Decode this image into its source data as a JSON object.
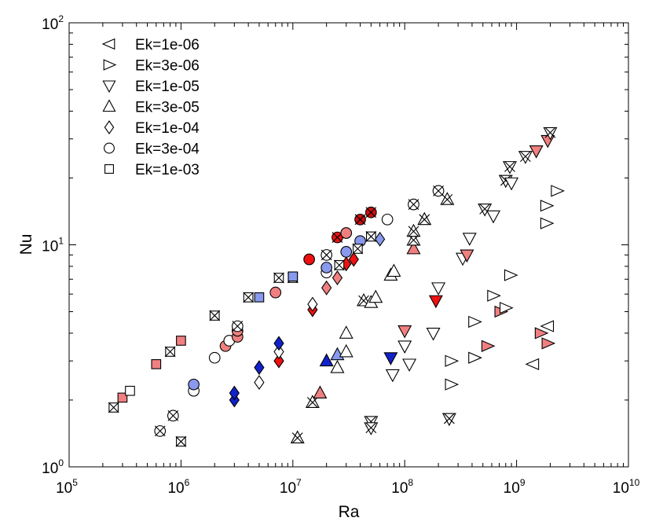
{
  "chart_data": {
    "type": "scatter",
    "title": "",
    "xlabel": "Ra",
    "ylabel": "Nu",
    "xscale": "log",
    "yscale": "log",
    "xlim": [
      100000,
      10000000000
    ],
    "ylim": [
      1,
      100
    ],
    "x_ticks": [
      {
        "base": "10",
        "exp": "5",
        "value": 100000
      },
      {
        "base": "10",
        "exp": "6",
        "value": 1000000
      },
      {
        "base": "10",
        "exp": "7",
        "value": 10000000
      },
      {
        "base": "10",
        "exp": "8",
        "value": 100000000
      },
      {
        "base": "10",
        "exp": "9",
        "value": 1000000000
      },
      {
        "base": "10",
        "exp": "10",
        "value": 10000000000
      }
    ],
    "y_ticks": [
      {
        "base": "10",
        "exp": "0",
        "value": 1
      },
      {
        "base": "10",
        "exp": "1",
        "value": 10
      },
      {
        "base": "10",
        "exp": "2",
        "value": 100
      }
    ],
    "legend_position": "top-left",
    "legend": [
      {
        "label": "Ek=1e-06",
        "marker": "triangle-left"
      },
      {
        "label": "Ek=3e-06",
        "marker": "triangle-right"
      },
      {
        "label": "Ek=1e-05",
        "marker": "triangle-down"
      },
      {
        "label": "Ek=3e-05",
        "marker": "triangle-up"
      },
      {
        "label": "Ek=1e-04",
        "marker": "diamond"
      },
      {
        "label": "Ek=3e-04",
        "marker": "circle"
      },
      {
        "label": "Ek=1e-03",
        "marker": "square"
      }
    ],
    "fill_colors": {
      "white": "#ffffff",
      "red": "#ee1111",
      "darkred": "#cc1111",
      "pink": "#f08080",
      "blue": "#1122cc",
      "lightblue": "#8899ee"
    },
    "series": [
      {
        "name": "Ek=1e-06",
        "marker": "triangle-left",
        "points": [
          {
            "x": 1400000000,
            "y": 2.9,
            "fill": "white",
            "cross": false
          },
          {
            "x": 1900000000,
            "y": 4.3,
            "fill": "white",
            "cross": false
          }
        ]
      },
      {
        "name": "Ek=3e-06",
        "marker": "triangle-right",
        "points": [
          {
            "x": 260000000,
            "y": 2.35,
            "fill": "white",
            "cross": false
          },
          {
            "x": 260000000,
            "y": 3.0,
            "fill": "white",
            "cross": false
          },
          {
            "x": 420000000,
            "y": 3.1,
            "fill": "white",
            "cross": false
          },
          {
            "x": 420000000,
            "y": 4.5,
            "fill": "white",
            "cross": false
          },
          {
            "x": 550000000,
            "y": 3.5,
            "fill": "pink",
            "cross": false
          },
          {
            "x": 620000000,
            "y": 5.9,
            "fill": "white",
            "cross": false
          },
          {
            "x": 720000000,
            "y": 5.0,
            "fill": "pink",
            "cross": false
          },
          {
            "x": 800000000,
            "y": 5.2,
            "fill": "white",
            "cross": false
          },
          {
            "x": 880000000,
            "y": 7.3,
            "fill": "white",
            "cross": false
          },
          {
            "x": 1650000000,
            "y": 4.0,
            "fill": "pink",
            "cross": false
          },
          {
            "x": 1900000000,
            "y": 3.6,
            "fill": "pink",
            "cross": false
          },
          {
            "x": 1850000000,
            "y": 12.5,
            "fill": "white",
            "cross": false
          },
          {
            "x": 1850000000,
            "y": 15.0,
            "fill": "white",
            "cross": false
          },
          {
            "x": 2300000000,
            "y": 17.5,
            "fill": "white",
            "cross": false
          }
        ]
      },
      {
        "name": "Ek=1e-05",
        "marker": "triangle-down",
        "points": [
          {
            "x": 50000000,
            "y": 1.6,
            "fill": "white",
            "cross": true
          },
          {
            "x": 50000000,
            "y": 1.5,
            "fill": "white",
            "cross": true
          },
          {
            "x": 75000000,
            "y": 3.1,
            "fill": "blue",
            "cross": false
          },
          {
            "x": 78000000,
            "y": 2.6,
            "fill": "white",
            "cross": false
          },
          {
            "x": 100000000,
            "y": 3.5,
            "fill": "white",
            "cross": false
          },
          {
            "x": 100000000,
            "y": 4.1,
            "fill": "pink",
            "cross": false
          },
          {
            "x": 110000000,
            "y": 2.9,
            "fill": "white",
            "cross": false
          },
          {
            "x": 180000000,
            "y": 4.0,
            "fill": "white",
            "cross": false
          },
          {
            "x": 190000000,
            "y": 5.6,
            "fill": "red",
            "cross": false
          },
          {
            "x": 200000000,
            "y": 6.4,
            "fill": "white",
            "cross": false
          },
          {
            "x": 250000000,
            "y": 1.65,
            "fill": "white",
            "cross": true
          },
          {
            "x": 330000000,
            "y": 8.7,
            "fill": "white",
            "cross": false
          },
          {
            "x": 360000000,
            "y": 9.0,
            "fill": "pink",
            "cross": false
          },
          {
            "x": 380000000,
            "y": 10.7,
            "fill": "white",
            "cross": false
          },
          {
            "x": 520000000,
            "y": 14.5,
            "fill": "white",
            "cross": true
          },
          {
            "x": 620000000,
            "y": 13.5,
            "fill": "white",
            "cross": false
          },
          {
            "x": 800000000,
            "y": 19.5,
            "fill": "white",
            "cross": true
          },
          {
            "x": 870000000,
            "y": 22.5,
            "fill": "white",
            "cross": true
          },
          {
            "x": 900000000,
            "y": 19.0,
            "fill": "white",
            "cross": false
          },
          {
            "x": 1200000000,
            "y": 25.0,
            "fill": "white",
            "cross": true
          },
          {
            "x": 1500000000,
            "y": 26.5,
            "fill": "pink",
            "cross": false
          },
          {
            "x": 1900000000,
            "y": 29.5,
            "fill": "pink",
            "cross": false
          },
          {
            "x": 2000000000,
            "y": 32.0,
            "fill": "white",
            "cross": true
          }
        ]
      },
      {
        "name": "Ek=3e-05",
        "marker": "triangle-up",
        "points": [
          {
            "x": 11000000,
            "y": 1.35,
            "fill": "white",
            "cross": true
          },
          {
            "x": 15000000,
            "y": 1.95,
            "fill": "white",
            "cross": true
          },
          {
            "x": 17500000,
            "y": 2.15,
            "fill": "pink",
            "cross": false
          },
          {
            "x": 20000000,
            "y": 3.0,
            "fill": "blue",
            "cross": false
          },
          {
            "x": 25000000,
            "y": 2.8,
            "fill": "white",
            "cross": false
          },
          {
            "x": 25000000,
            "y": 3.2,
            "fill": "lightblue",
            "cross": false
          },
          {
            "x": 30000000,
            "y": 3.3,
            "fill": "white",
            "cross": false
          },
          {
            "x": 30000000,
            "y": 4.0,
            "fill": "white",
            "cross": false
          },
          {
            "x": 43000000,
            "y": 5.6,
            "fill": "white",
            "cross": true
          },
          {
            "x": 50000000,
            "y": 5.5,
            "fill": "white",
            "cross": false
          },
          {
            "x": 55000000,
            "y": 5.8,
            "fill": "white",
            "cross": false
          },
          {
            "x": 75000000,
            "y": 7.3,
            "fill": "white",
            "cross": false
          },
          {
            "x": 80000000,
            "y": 7.6,
            "fill": "white",
            "cross": false
          },
          {
            "x": 120000000,
            "y": 9.6,
            "fill": "pink",
            "cross": false
          },
          {
            "x": 120000000,
            "y": 10.5,
            "fill": "white",
            "cross": true
          },
          {
            "x": 120000000,
            "y": 11.5,
            "fill": "white",
            "cross": true
          },
          {
            "x": 150000000,
            "y": 13.0,
            "fill": "white",
            "cross": true
          },
          {
            "x": 240000000,
            "y": 16.0,
            "fill": "white",
            "cross": true
          }
        ]
      },
      {
        "name": "Ek=1e-04",
        "marker": "diamond",
        "points": [
          {
            "x": 3000000,
            "y": 2.0,
            "fill": "blue",
            "cross": false
          },
          {
            "x": 3000000,
            "y": 2.15,
            "fill": "blue",
            "cross": false
          },
          {
            "x": 5000000,
            "y": 2.4,
            "fill": "white",
            "cross": false
          },
          {
            "x": 5000000,
            "y": 2.8,
            "fill": "blue",
            "cross": false
          },
          {
            "x": 7500000,
            "y": 3.0,
            "fill": "red",
            "cross": false
          },
          {
            "x": 7500000,
            "y": 3.3,
            "fill": "white",
            "cross": false
          },
          {
            "x": 7500000,
            "y": 3.6,
            "fill": "blue",
            "cross": false
          },
          {
            "x": 15000000,
            "y": 5.1,
            "fill": "red",
            "cross": false
          },
          {
            "x": 15000000,
            "y": 5.4,
            "fill": "white",
            "cross": false
          },
          {
            "x": 20000000,
            "y": 6.4,
            "fill": "pink",
            "cross": false
          },
          {
            "x": 25000000,
            "y": 7.1,
            "fill": "pink",
            "cross": false
          },
          {
            "x": 30000000,
            "y": 8.2,
            "fill": "red",
            "cross": false
          },
          {
            "x": 35000000,
            "y": 8.6,
            "fill": "red",
            "cross": false
          },
          {
            "x": 60000000,
            "y": 10.6,
            "fill": "lightblue",
            "cross": false
          }
        ]
      },
      {
        "name": "Ek=3e-04",
        "marker": "circle",
        "points": [
          {
            "x": 650000,
            "y": 1.45,
            "fill": "white",
            "cross": true
          },
          {
            "x": 850000,
            "y": 1.7,
            "fill": "white",
            "cross": true
          },
          {
            "x": 1300000,
            "y": 2.2,
            "fill": "white",
            "cross": false
          },
          {
            "x": 1300000,
            "y": 2.35,
            "fill": "lightblue",
            "cross": false
          },
          {
            "x": 2000000,
            "y": 3.1,
            "fill": "white",
            "cross": false
          },
          {
            "x": 2500000,
            "y": 3.5,
            "fill": "pink",
            "cross": false
          },
          {
            "x": 2700000,
            "y": 3.7,
            "fill": "white",
            "cross": false
          },
          {
            "x": 3200000,
            "y": 3.85,
            "fill": "pink",
            "cross": false
          },
          {
            "x": 3200000,
            "y": 4.1,
            "fill": "pink",
            "cross": false
          },
          {
            "x": 3200000,
            "y": 4.3,
            "fill": "white",
            "cross": true
          },
          {
            "x": 7000000,
            "y": 6.1,
            "fill": "pink",
            "cross": false
          },
          {
            "x": 14000000,
            "y": 8.6,
            "fill": "red",
            "cross": false
          },
          {
            "x": 20000000,
            "y": 7.5,
            "fill": "white",
            "cross": false
          },
          {
            "x": 20000000,
            "y": 7.9,
            "fill": "lightblue",
            "cross": false
          },
          {
            "x": 20000000,
            "y": 9.0,
            "fill": "white",
            "cross": true
          },
          {
            "x": 25000000,
            "y": 10.8,
            "fill": "red",
            "cross": true
          },
          {
            "x": 30000000,
            "y": 9.3,
            "fill": "lightblue",
            "cross": false
          },
          {
            "x": 30000000,
            "y": 11.3,
            "fill": "pink",
            "cross": false
          },
          {
            "x": 40000000,
            "y": 10.4,
            "fill": "lightblue",
            "cross": false
          },
          {
            "x": 40000000,
            "y": 13.0,
            "fill": "darkred",
            "cross": true
          },
          {
            "x": 50000000,
            "y": 14.0,
            "fill": "darkred",
            "cross": true
          },
          {
            "x": 70000000,
            "y": 13.0,
            "fill": "white",
            "cross": false
          },
          {
            "x": 120000000,
            "y": 15.2,
            "fill": "white",
            "cross": true
          },
          {
            "x": 200000000,
            "y": 17.5,
            "fill": "white",
            "cross": true
          }
        ]
      },
      {
        "name": "Ek=1e-03",
        "marker": "square",
        "points": [
          {
            "x": 250000,
            "y": 1.85,
            "fill": "white",
            "cross": true
          },
          {
            "x": 300000,
            "y": 2.05,
            "fill": "pink",
            "cross": false
          },
          {
            "x": 350000,
            "y": 2.2,
            "fill": "white",
            "cross": false
          },
          {
            "x": 600000,
            "y": 2.9,
            "fill": "pink",
            "cross": false
          },
          {
            "x": 800000,
            "y": 3.3,
            "fill": "white",
            "cross": true
          },
          {
            "x": 1000000,
            "y": 1.3,
            "fill": "white",
            "cross": true
          },
          {
            "x": 1000000,
            "y": 3.7,
            "fill": "pink",
            "cross": false
          },
          {
            "x": 2000000,
            "y": 4.8,
            "fill": "white",
            "cross": true
          },
          {
            "x": 4000000,
            "y": 5.8,
            "fill": "white",
            "cross": true
          },
          {
            "x": 5000000,
            "y": 5.8,
            "fill": "lightblue",
            "cross": false
          },
          {
            "x": 7500000,
            "y": 7.1,
            "fill": "white",
            "cross": true
          },
          {
            "x": 10000000,
            "y": 7.1,
            "fill": "white",
            "cross": true
          },
          {
            "x": 10000000,
            "y": 7.2,
            "fill": "lightblue",
            "cross": false
          },
          {
            "x": 26000000,
            "y": 8.1,
            "fill": "white",
            "cross": true
          },
          {
            "x": 38000000,
            "y": 9.6,
            "fill": "white",
            "cross": true
          },
          {
            "x": 50000000,
            "y": 10.9,
            "fill": "white",
            "cross": true
          }
        ]
      }
    ]
  }
}
